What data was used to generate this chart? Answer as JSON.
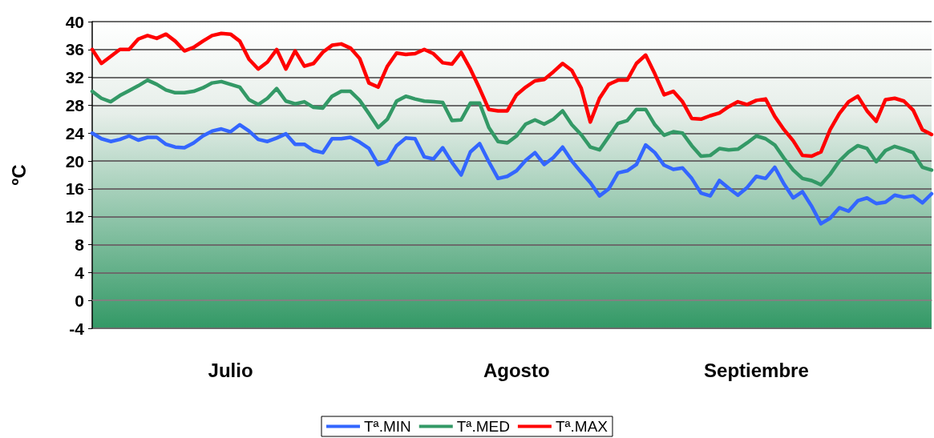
{
  "chart_data": {
    "type": "line",
    "ylabel": "ºC",
    "ylim": [
      -4,
      40
    ],
    "yticks": [
      -4,
      0,
      4,
      8,
      12,
      16,
      20,
      24,
      28,
      32,
      36,
      40
    ],
    "categories": [
      null,
      null,
      null,
      null,
      null,
      null,
      null,
      null,
      null,
      null,
      null,
      null,
      null,
      null,
      null,
      "Julio",
      null,
      null,
      null,
      null,
      null,
      null,
      null,
      null,
      null,
      null,
      null,
      null,
      null,
      null,
      null,
      null,
      null,
      null,
      null,
      null,
      null,
      null,
      null,
      null,
      null,
      null,
      null,
      null,
      null,
      null,
      "Agosto",
      null,
      null,
      null,
      null,
      null,
      null,
      null,
      null,
      null,
      null,
      null,
      null,
      null,
      null,
      null,
      null,
      null,
      null,
      null,
      null,
      null,
      null,
      null,
      null,
      null,
      "Septiembre",
      null,
      null,
      null,
      null,
      null,
      null,
      null,
      null,
      null,
      null,
      null,
      null,
      null,
      null,
      null,
      null,
      null,
      null,
      null
    ],
    "grid": "y",
    "legend": "bottom",
    "marker": "none",
    "line_style": "solid",
    "series": [
      {
        "name": "Tª.MIN",
        "color": "#3366ff",
        "values": [
          24.0,
          23.2,
          22.8,
          23.1,
          23.6,
          23.0,
          23.4,
          23.4,
          22.4,
          22.0,
          21.9,
          22.6,
          23.6,
          24.3,
          24.6,
          24.2,
          25.2,
          24.3,
          23.1,
          22.8,
          23.3,
          23.9,
          22.4,
          22.4,
          21.5,
          21.2,
          23.2,
          23.2,
          23.4,
          22.7,
          21.8,
          19.5,
          20.0,
          22.2,
          23.3,
          23.2,
          20.6,
          20.3,
          21.9,
          19.8,
          18.0,
          21.3,
          22.5,
          19.9,
          17.5,
          17.8,
          18.6,
          20.1,
          21.2,
          19.5,
          20.5,
          22.0,
          20.0,
          18.4,
          16.9,
          15.0,
          16.0,
          18.3,
          18.6,
          19.5,
          22.3,
          21.2,
          19.4,
          18.8,
          19.0,
          17.5,
          15.4,
          15.0,
          17.2,
          16.1,
          15.1,
          16.2,
          17.8,
          17.5,
          19.1,
          16.7,
          14.7,
          15.6,
          13.5,
          11.0,
          11.8,
          13.3,
          12.8,
          14.3,
          14.7,
          13.9,
          14.1,
          15.1,
          14.8,
          15.0,
          14.0,
          15.3
        ]
      },
      {
        "name": "Tª.MED",
        "color": "#339966",
        "values": [
          30.0,
          29.0,
          28.5,
          29.4,
          30.1,
          30.8,
          31.6,
          31.0,
          30.2,
          29.8,
          29.8,
          30.0,
          30.5,
          31.2,
          31.4,
          31.0,
          30.6,
          28.8,
          28.1,
          29.0,
          30.4,
          28.6,
          28.2,
          28.5,
          27.7,
          27.6,
          29.3,
          30.0,
          30.0,
          28.7,
          26.8,
          24.8,
          26.0,
          28.6,
          29.3,
          28.9,
          28.6,
          28.5,
          28.4,
          25.8,
          25.9,
          28.3,
          28.3,
          24.8,
          22.8,
          22.6,
          23.6,
          25.3,
          25.9,
          25.3,
          26.0,
          27.2,
          25.2,
          23.8,
          22.0,
          21.6,
          23.5,
          25.4,
          25.8,
          27.4,
          27.4,
          25.2,
          23.7,
          24.2,
          24.0,
          22.2,
          20.7,
          20.8,
          21.8,
          21.6,
          21.7,
          22.6,
          23.6,
          23.2,
          22.3,
          20.4,
          18.7,
          17.5,
          17.2,
          16.6,
          18.1,
          20.0,
          21.3,
          22.2,
          21.8,
          19.9,
          21.5,
          22.1,
          21.7,
          21.2,
          19.1,
          18.7
        ]
      },
      {
        "name": "Tª.MAX",
        "color": "#ff0000",
        "values": [
          36.0,
          34.0,
          35.0,
          36.0,
          36.0,
          37.5,
          38.0,
          37.6,
          38.2,
          37.2,
          35.8,
          36.3,
          37.2,
          38.0,
          38.3,
          38.2,
          37.2,
          34.6,
          33.2,
          34.2,
          36.0,
          33.2,
          35.8,
          33.6,
          34.0,
          35.6,
          36.6,
          36.8,
          36.2,
          34.7,
          31.2,
          30.6,
          33.6,
          35.5,
          35.3,
          35.4,
          36.0,
          35.4,
          34.1,
          33.9,
          35.6,
          33.2,
          30.4,
          27.4,
          27.2,
          27.2,
          29.5,
          30.6,
          31.5,
          31.7,
          32.8,
          34.0,
          33.0,
          30.5,
          25.6,
          29.0,
          31.0,
          31.6,
          31.6,
          34.0,
          35.2,
          32.5,
          29.5,
          30.0,
          28.5,
          26.1,
          26.0,
          26.5,
          26.9,
          27.8,
          28.5,
          28.1,
          28.7,
          28.9,
          26.4,
          24.5,
          22.9,
          20.8,
          20.7,
          21.3,
          24.5,
          26.8,
          28.5,
          29.3,
          27.2,
          25.7,
          28.8,
          29.0,
          28.6,
          27.3,
          24.5,
          23.8
        ]
      }
    ]
  }
}
